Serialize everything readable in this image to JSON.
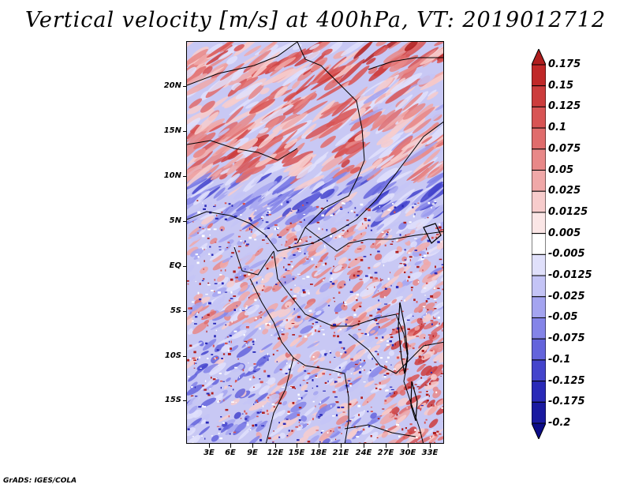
{
  "title": "Vertical velocity [m/s] at 400hPa, VT: 2019012712",
  "credit": "GrADS: IGES/COLA",
  "latitude_labels": [
    "20N",
    "15N",
    "10N",
    "5N",
    "EQ",
    "5S",
    "10S",
    "15S"
  ],
  "longitude_labels": [
    "3E",
    "6E",
    "9E",
    "12E",
    "15E",
    "18E",
    "21E",
    "24E",
    "27E",
    "30E",
    "33E"
  ],
  "colorbar": {
    "labels": [
      "0.175",
      "0.15",
      "0.125",
      "0.1",
      "0.075",
      "0.05",
      "0.025",
      "0.0125",
      "0.005",
      "-0.005",
      "-0.0125",
      "-0.025",
      "-0.05",
      "-0.075",
      "-0.1",
      "-0.125",
      "-0.175",
      "-0.2"
    ],
    "colors": [
      "#b01e1e",
      "#c02828",
      "#cc3c3c",
      "#d85454",
      "#e06c6c",
      "#e88888",
      "#f0a8a8",
      "#f7cccc",
      "#fbe6e6",
      "#ffffff",
      "#e0e0fb",
      "#c4c4f6",
      "#a4a4f0",
      "#8484e8",
      "#6464dc",
      "#4444cc",
      "#2a2ab8",
      "#1a1aa0",
      "#0c0c88"
    ]
  }
}
